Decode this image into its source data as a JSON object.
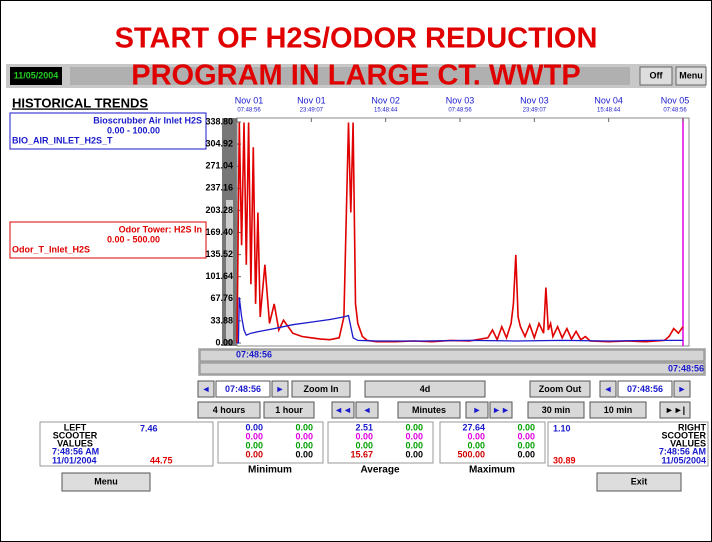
{
  "title": [
    "START OF H2S/ODOR REDUCTION",
    "PROGRAM IN LARGE CT. WWTP"
  ],
  "toolbar": {
    "date": "11/05/2004",
    "buttons": [
      "Off",
      "Menu"
    ]
  },
  "panel_title": "HISTORICAL TRENDS",
  "pens": [
    {
      "name": "Bioscrubber Air Inlet H2S",
      "range": "0.00 - 100.00",
      "tag": "BIO_AIR_INLET_H2S_T"
    },
    {
      "name": "Odor Tower: H2S In",
      "range": "0.00 - 500.00",
      "tag": "Odor_T_Inlet_H2S"
    }
  ],
  "chart_data": {
    "type": "line",
    "xlim": [
      0,
      96
    ],
    "ylim": [
      0,
      338.8
    ],
    "yticks": [
      {
        "value": 0,
        "label": "0.00"
      },
      33.88,
      67.76,
      101.64,
      135.52,
      {
        "value": 169.4,
        "label": "169.40"
      },
      203.28,
      237.16,
      271.04,
      304.92,
      {
        "value": 338.8,
        "label": "338.80"
      }
    ],
    "xticks": [
      {
        "value": 0,
        "label": [
          "Nov 01",
          "07:48:56"
        ]
      },
      {
        "value": 16,
        "label": [
          "Nov 01",
          "23:49:07"
        ]
      },
      {
        "value": 32,
        "label": [
          "Nov 02",
          "15:48:44"
        ]
      },
      {
        "value": 48,
        "label": [
          "Nov 03",
          "07:48:56"
        ]
      },
      {
        "value": 64,
        "label": [
          "Nov 03",
          "23:49:07"
        ]
      },
      {
        "value": 80,
        "label": [
          "Nov 04",
          "15:48:44"
        ]
      },
      {
        "value": 96,
        "label": [
          "Nov 05",
          "07:48:56"
        ]
      }
    ],
    "series": [
      {
        "color": "#e00000",
        "x": [
          0,
          0.5,
          1,
          1.5,
          2,
          2.5,
          3,
          3.5,
          4,
          4.5,
          5,
          6,
          7,
          8,
          9,
          10,
          12,
          14,
          16,
          18,
          20,
          22,
          23,
          24,
          24.5,
          25,
          25.5,
          26,
          27,
          28,
          30,
          34,
          38,
          42,
          46,
          50,
          54,
          55,
          56,
          57,
          58,
          59,
          59.5,
          60,
          60.5,
          61,
          62,
          63,
          64,
          65,
          66,
          66.5,
          67,
          67.5,
          68,
          69,
          70,
          71,
          72,
          73,
          74,
          75,
          76,
          80,
          84,
          88,
          92,
          93,
          94,
          95,
          96
        ],
        "values": [
          0,
          338,
          150,
          338,
          120,
          338,
          90,
          300,
          60,
          200,
          40,
          120,
          30,
          60,
          20,
          35,
          15,
          10,
          8,
          6,
          5,
          8,
          40,
          338,
          200,
          338,
          60,
          30,
          10,
          4,
          2,
          2,
          3,
          2,
          4,
          3,
          8,
          20,
          5,
          25,
          8,
          30,
          60,
          135,
          40,
          25,
          10,
          28,
          8,
          30,
          15,
          85,
          20,
          30,
          10,
          25,
          8,
          22,
          6,
          18,
          5,
          10,
          3,
          2,
          3,
          2,
          4,
          10,
          22,
          15,
          25
        ]
      },
      {
        "color": "#1a1acc",
        "x": [
          0,
          0.3,
          0.5,
          1,
          1.5,
          2,
          3,
          5,
          8,
          12,
          16,
          20,
          23,
          24,
          25,
          26,
          30,
          40,
          50,
          60,
          70,
          80,
          90,
          96
        ],
        "values": [
          0,
          0,
          70,
          40,
          20,
          12,
          15,
          18,
          22,
          28,
          32,
          36,
          40,
          42,
          8,
          4,
          3,
          3,
          4,
          3,
          4,
          3,
          4,
          4
        ]
      }
    ]
  },
  "scroll": {
    "left": "07:48:56",
    "right": "07:48:56"
  },
  "controls": [
    [
      "◄",
      "07:48:56",
      "►",
      "Zoom In",
      "4d",
      "Zoom Out",
      "◄",
      "07:48:56",
      "►"
    ],
    [
      "4 hours",
      "1 hour",
      "◄◄",
      "◄",
      "Minutes",
      "►",
      "►►",
      "30 min",
      "10 min",
      "►►|"
    ]
  ],
  "stats": {
    "left": {
      "label": [
        "LEFT",
        "SCOOTER",
        "VALUES"
      ],
      "time": "7:48:56 AM",
      "date": "11/01/2004",
      "pen1": "7.46",
      "pen2": "44.75"
    },
    "right": {
      "label": [
        "RIGHT",
        "SCOOTER",
        "VALUES"
      ],
      "time": "7:48:56 AM",
      "date": "11/05/2004",
      "pen1": "1.10",
      "pen2": "30.89"
    },
    "columns": [
      {
        "name": "Minimum",
        "rows": [
          [
            "0.00",
            "0.00"
          ],
          [
            "0.00",
            "0.00"
          ],
          [
            "0.00",
            "0.00"
          ],
          [
            "0.00",
            "0.00"
          ]
        ]
      },
      {
        "name": "Average",
        "rows": [
          [
            "2.51",
            "0.00"
          ],
          [
            "0.00",
            "0.00"
          ],
          [
            "0.00",
            "0.00"
          ],
          [
            "15.67",
            "0.00"
          ]
        ]
      },
      {
        "name": "Maximum",
        "rows": [
          [
            "27.64",
            "0.00"
          ],
          [
            "0.00",
            "0.00"
          ],
          [
            "0.00",
            "0.00"
          ],
          [
            "500.00",
            "0.00"
          ]
        ]
      }
    ]
  },
  "buttons": [
    "Menu",
    "Exit"
  ]
}
